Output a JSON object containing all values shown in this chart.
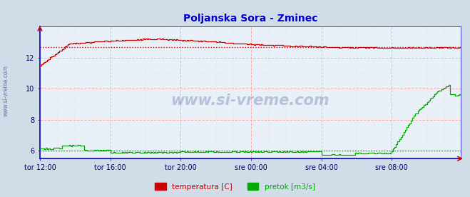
{
  "title": "Poljanska Sora - Zminec",
  "title_color": "#0000cc",
  "title_fontsize": 10,
  "fig_bg_color": "#d0dce8",
  "plot_bg_color": "#e8f0f8",
  "xlim": [
    0,
    287
  ],
  "ylim": [
    5.5,
    14.0
  ],
  "yticks": [
    6,
    8,
    10,
    12
  ],
  "ytick_labels": [
    "6",
    "8",
    "10",
    "12"
  ],
  "xtick_labels": [
    "tor 12:00",
    "tor 16:00",
    "tor 20:00",
    "sre 00:00",
    "sre 04:00",
    "sre 08:00"
  ],
  "xtick_positions": [
    0,
    48,
    96,
    144,
    192,
    240
  ],
  "watermark": "www.si-vreme.com",
  "watermark_color": "#1a3a8a",
  "watermark_alpha": 0.25,
  "side_label": "www.si-vreme.com",
  "side_label_color": "#4466aa",
  "legend_labels": [
    "temperatura [C]",
    "pretok [m3/s]"
  ],
  "legend_colors": [
    "#cc0000",
    "#00aa00"
  ],
  "temp_color": "#cc0000",
  "flow_color": "#00aa00",
  "temp_avg_line": 12.68,
  "flow_avg_line": 6.0,
  "temp_avg_color": "#cc0000",
  "flow_avg_color": "#00aa00",
  "major_grid_color": "#ffaaaa",
  "minor_grid_color": "#ffdddd",
  "spine_color": "#0000dd",
  "tick_color": "#000066"
}
